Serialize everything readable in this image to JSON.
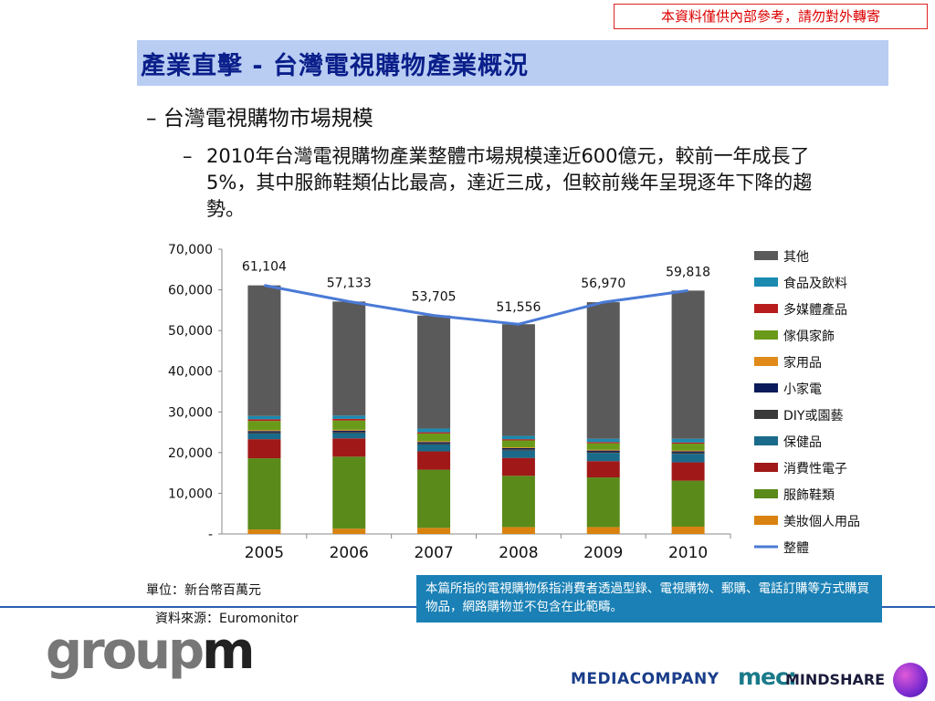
{
  "notice": "本資料僅供內部參考，請勿對外轉寄",
  "title": "產業直擊 - 台灣電視購物產業概況",
  "bullet1": "– 台灣電視購物市場規模",
  "bullet2_dash": "–",
  "bullet2": "2010年台灣電視購物產業整體市場規模達近600億元，較前一年成長了5%，其中服飾鞋類佔比最高，達近三成，但較前幾年呈現逐年下降的趨勢。",
  "unit_label": "單位：新台幣百萬元",
  "source_label": "資料來源：Euromonitor",
  "note": "本篇所指的電視購物係指消費者透過型錄、電視購物、郵購、電話訂購等方式購買物品，網路購物並不包含在此範疇。",
  "logos": {
    "groupm": "group",
    "groupm_m": "m",
    "mediacompany": "MEDIACOMPANY",
    "mec": "mec:",
    "mindshare": "MINDSHARE"
  },
  "colors": {
    "title_bar": "#b9cdf3",
    "title_text": "#0a1f8a",
    "notice_border": "#d22222",
    "note_bg": "#1a80b5",
    "total_line": "#4a7ad6"
  },
  "chart_data": {
    "type": "bar",
    "stacked": true,
    "categories": [
      "2005",
      "2006",
      "2007",
      "2008",
      "2009",
      "2010"
    ],
    "ylim": [
      0,
      70000
    ],
    "yticks": [
      "70,000",
      "60,000",
      "50,000",
      "40,000",
      "30,000",
      "20,000",
      "10,000",
      "-"
    ],
    "series": [
      {
        "name": "美妝個人用品",
        "color": "#d9820f",
        "values": [
          1100,
          1300,
          1500,
          1700,
          1700,
          1800
        ]
      },
      {
        "name": "服飾鞋類",
        "color": "#5a8a1a",
        "values": [
          17500,
          17700,
          14300,
          12600,
          12200,
          11300
        ]
      },
      {
        "name": "消費性電子",
        "color": "#a01818",
        "values": [
          4700,
          4500,
          4500,
          4400,
          4000,
          4500
        ]
      },
      {
        "name": "保健品",
        "color": "#1a6a8a",
        "values": [
          1400,
          1300,
          1700,
          1800,
          2000,
          2100
        ]
      },
      {
        "name": "DIY或園藝",
        "color": "#3a3a3a",
        "values": [
          300,
          300,
          300,
          300,
          300,
          300
        ]
      },
      {
        "name": "小家電",
        "color": "#0a1a5a",
        "values": [
          300,
          300,
          300,
          300,
          300,
          300
        ]
      },
      {
        "name": "家用品",
        "color": "#e08a1a",
        "values": [
          200,
          200,
          200,
          200,
          200,
          200
        ]
      },
      {
        "name": "傢俱家飾",
        "color": "#6a9a1a",
        "values": [
          2300,
          2300,
          1900,
          1700,
          1600,
          1700
        ]
      },
      {
        "name": "多媒體產品",
        "color": "#b81c1c",
        "values": [
          400,
          400,
          300,
          300,
          300,
          300
        ]
      },
      {
        "name": "食品及飲料",
        "color": "#1a8ab0",
        "values": [
          800,
          800,
          900,
          800,
          800,
          900
        ]
      },
      {
        "name": "其他",
        "color": "#5a5a5a",
        "values": [
          32104,
          28033,
          27805,
          27456,
          33570,
          36418
        ]
      }
    ],
    "total": {
      "name": "整體",
      "color": "#4a7ad6",
      "values": [
        61104,
        57133,
        53705,
        51556,
        56970,
        59818
      ],
      "labels": [
        "61,104",
        "57,133",
        "53,705",
        "51,556",
        "56,970",
        "59,818"
      ]
    },
    "legend_order": [
      "其他",
      "食品及飲料",
      "多媒體產品",
      "傢俱家飾",
      "家用品",
      "小家電",
      "DIY或園藝",
      "保健品",
      "消費性電子",
      "服飾鞋類",
      "美妝個人用品",
      "整體"
    ],
    "legend_position": "right",
    "grid": false
  }
}
